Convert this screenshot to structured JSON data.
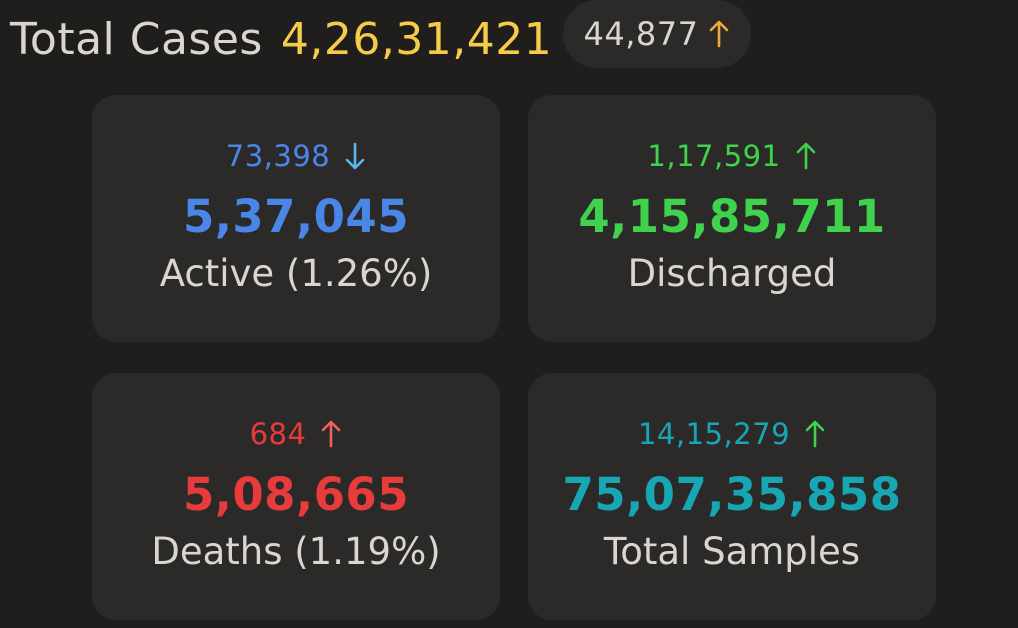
{
  "header": {
    "title": "Total Cases",
    "value": "4,26,31,421",
    "delta": "44,877",
    "delta_direction": "up",
    "delta_icon": "arrow-up-icon",
    "colors": {
      "title": "#d9d6d2",
      "value": "#f6cb48",
      "arrow": "#f0a93a"
    }
  },
  "cards": {
    "active": {
      "delta": "73,398",
      "delta_direction": "down",
      "delta_icon": "arrow-down-icon",
      "value": "5,37,045",
      "label": "Active (1.26%)",
      "color": "#4a86e8",
      "arrow_color": "#5cb6f0"
    },
    "discharged": {
      "delta": "1,17,591",
      "delta_direction": "up",
      "delta_icon": "arrow-up-icon",
      "value": "4,15,85,711",
      "label": "Discharged",
      "color": "#3fd24d",
      "arrow_color": "#3fd24d"
    },
    "deaths": {
      "delta": "684",
      "delta_direction": "up",
      "delta_icon": "arrow-up-icon",
      "value": "5,08,665",
      "label": "Deaths (1.19%)",
      "color": "#e83b3b",
      "arrow_color": "#f06060"
    },
    "samples": {
      "delta": "14,15,279",
      "delta_direction": "up",
      "delta_icon": "arrow-up-icon",
      "value": "75,07,35,858",
      "label": "Total Samples",
      "color": "#17a7b4",
      "arrow_color": "#3fd24d"
    }
  }
}
